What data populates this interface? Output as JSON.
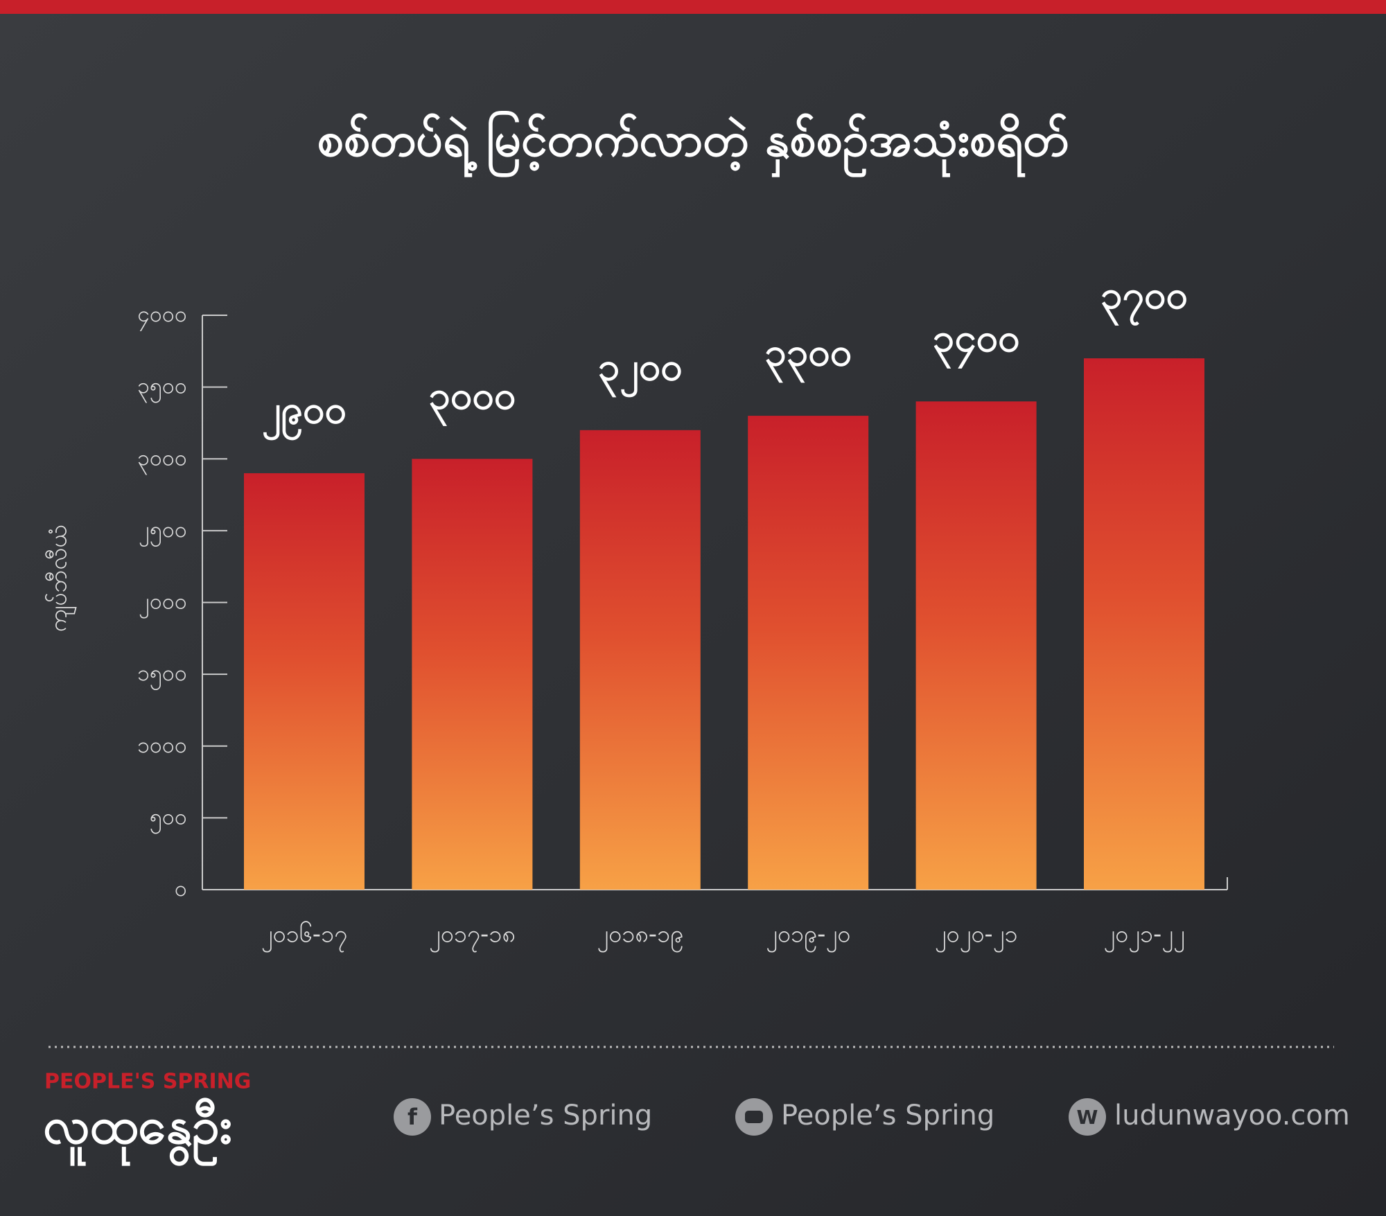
{
  "chart_data": {
    "type": "bar",
    "title": "စစ်တပ်ရဲ့ မြင့်တက်လာတဲ့ နှစ်စဉ်အသုံးစရိတ်",
    "y_label": "ကျပ်ဘီလီယံ",
    "categories": [
      "၂၀၁၆-၁၇",
      "၂၀၁၇-၁၈",
      "၂၀၁၈-၁၉",
      "၂၀၁၉-၂၀",
      "၂၀၂၀-၂၁",
      "၂၀၂၁-၂၂"
    ],
    "values": [
      2900,
      3000,
      3200,
      3300,
      3400,
      3700
    ],
    "value_labels": [
      "၂၉၀၀",
      "၃၀၀၀",
      "၃၂၀၀",
      "၃၃၀၀",
      "၃၄၀၀",
      "၃၇၀၀"
    ],
    "color": "#c8202a",
    "ylim": [
      0,
      4000
    ],
    "yticks": [
      {
        "value": 0,
        "label": "၀"
      },
      {
        "value": 500,
        "label": "၅၀၀"
      },
      {
        "value": 1000,
        "label": "၁၀၀၀"
      },
      {
        "value": 1500,
        "label": "၁၅၀၀"
      },
      {
        "value": 2000,
        "label": "၂၀၀၀"
      },
      {
        "value": 2500,
        "label": "၂၅၀၀"
      },
      {
        "value": 3000,
        "label": "၃၀၀၀"
      },
      {
        "value": 3500,
        "label": "၃၅၀၀"
      },
      {
        "value": 4000,
        "label": "၄၀၀၀"
      }
    ],
    "grid": false
  },
  "footer": {
    "brand_en": "PEOPLE'S SPRING",
    "brand_mm": "လူထုနွေဦး",
    "links": [
      "People’s Spring",
      "People’s Spring",
      "ludunwayoo.com"
    ]
  }
}
